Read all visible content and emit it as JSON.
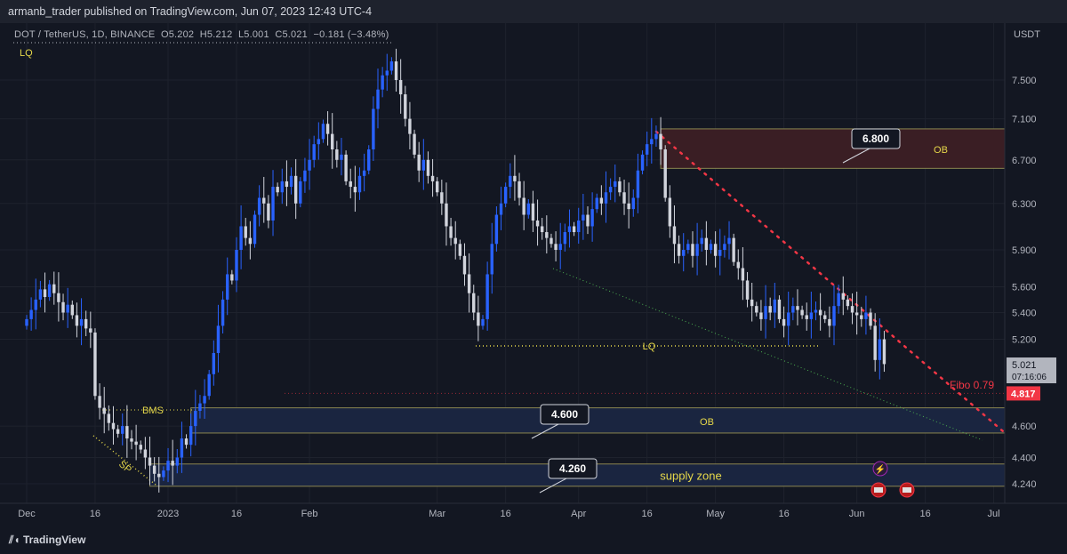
{
  "header": {
    "publisher_line": "armanb_trader published on TradingView.com, Jun 07, 2023 12:43 UTC-4"
  },
  "legend": {
    "symbol": "DOT / TetherUS, 1D, BINANCE",
    "open": "O5.202",
    "high": "H5.212",
    "low": "L5.001",
    "close": "C5.021",
    "change": "−0.181 (−3.48%)"
  },
  "footer": {
    "brand": "TradingView"
  },
  "colors": {
    "up": "#2962ff",
    "down": "#d1d4dc",
    "bg": "#131722",
    "red": "#f23645",
    "zone_red": "#3a1e24",
    "zone_blue": "#1a2540"
  },
  "chart_data": {
    "type": "candlestick",
    "title": "DOT / TetherUS, 1D, BINANCE",
    "start_date": "2022-12-01",
    "closes": [
      5.35,
      5.42,
      5.5,
      5.58,
      5.52,
      5.62,
      5.55,
      5.48,
      5.4,
      5.46,
      5.38,
      5.3,
      5.35,
      5.28,
      5.25,
      4.8,
      4.72,
      4.68,
      4.62,
      4.58,
      4.55,
      4.6,
      4.52,
      4.5,
      4.48,
      4.45,
      4.4,
      4.35,
      4.3,
      4.28,
      4.32,
      4.38,
      4.35,
      4.4,
      4.52,
      4.48,
      4.6,
      4.7,
      4.75,
      4.8,
      4.95,
      5.1,
      5.3,
      5.5,
      5.7,
      5.65,
      5.9,
      6.1,
      6.0,
      5.95,
      6.2,
      6.35,
      6.3,
      6.15,
      6.45,
      6.4,
      6.5,
      6.45,
      6.55,
      6.3,
      6.5,
      6.6,
      6.7,
      6.85,
      6.9,
      7.05,
      6.95,
      6.8,
      6.7,
      6.75,
      6.5,
      6.45,
      6.4,
      6.55,
      6.6,
      6.8,
      7.2,
      7.4,
      7.55,
      7.6,
      7.7,
      7.5,
      7.35,
      7.1,
      6.95,
      6.75,
      6.6,
      6.7,
      6.55,
      6.5,
      6.4,
      6.3,
      6.1,
      6.0,
      5.95,
      5.85,
      5.7,
      5.55,
      5.4,
      5.3,
      5.35,
      5.7,
      5.95,
      6.2,
      6.3,
      6.45,
      6.55,
      6.5,
      6.35,
      6.2,
      6.3,
      6.15,
      6.1,
      6.05,
      6.0,
      5.95,
      5.9,
      5.95,
      6.05,
      6.1,
      6.05,
      6.15,
      6.2,
      6.1,
      6.25,
      6.35,
      6.3,
      6.4,
      6.45,
      6.5,
      6.4,
      6.3,
      6.25,
      6.35,
      6.6,
      6.75,
      6.85,
      6.9,
      6.95,
      6.8,
      6.35,
      6.1,
      5.95,
      5.85,
      5.9,
      5.95,
      5.85,
      5.95,
      6.0,
      5.9,
      5.95,
      5.85,
      5.9,
      5.95,
      6.0,
      5.8,
      5.75,
      5.65,
      5.5,
      5.45,
      5.4,
      5.35,
      5.45,
      5.4,
      5.5,
      5.35,
      5.3,
      5.4,
      5.45,
      5.42,
      5.38,
      5.35,
      5.4,
      5.42,
      5.38,
      5.35,
      5.3,
      5.45,
      5.55,
      5.5,
      5.45,
      5.4,
      5.38,
      5.35,
      5.4,
      5.3,
      5.05,
      5.2,
      5.021
    ],
    "first_open": 5.3,
    "y_axis": {
      "unit": "USDT",
      "scale": "log",
      "ticks": [
        "7.500",
        "7.100",
        "6.700",
        "6.300",
        "5.900",
        "5.600",
        "5.400",
        "5.200",
        "4.600",
        "4.400",
        "4.240"
      ]
    },
    "x_axis": {
      "ticks": [
        {
          "label": "Dec",
          "day": 0
        },
        {
          "label": "16",
          "day": 15
        },
        {
          "label": "2023",
          "day": 31
        },
        {
          "label": "16",
          "day": 46
        },
        {
          "label": "Feb",
          "day": 62
        },
        {
          "label": "Mar",
          "day": 90
        },
        {
          "label": "16",
          "day": 105
        },
        {
          "label": "Apr",
          "day": 121
        },
        {
          "label": "16",
          "day": 136
        },
        {
          "label": "May",
          "day": 151
        },
        {
          "label": "16",
          "day": 166
        },
        {
          "label": "Jun",
          "day": 182
        },
        {
          "label": "16",
          "day": 197
        },
        {
          "label": "Jul",
          "day": 212
        }
      ]
    },
    "last_price": {
      "value": "5.021",
      "countdown": "07:16:06"
    },
    "fibo": {
      "label": "Fibo 0.79",
      "value": "4.817",
      "price": 4.817
    },
    "zones": [
      {
        "label": "OB",
        "top": 7.0,
        "bottom": 6.62,
        "start_day": 139,
        "kind": "red"
      },
      {
        "label": "OB",
        "top": 4.72,
        "bottom": 4.555,
        "start_day": 36,
        "kind": "blue"
      },
      {
        "label": "supply zone",
        "top": 4.36,
        "bottom": 4.225,
        "start_day": 27,
        "kind": "blue"
      }
    ],
    "callouts": [
      {
        "text": "6.800",
        "price": 6.8
      },
      {
        "text": "4.600",
        "price": 4.6
      },
      {
        "text": "4.260",
        "price": 4.26
      }
    ],
    "annotations": {
      "lq_top": "LQ",
      "lq_mid": "LQ",
      "bms": "BMS",
      "sp": "SP"
    }
  }
}
